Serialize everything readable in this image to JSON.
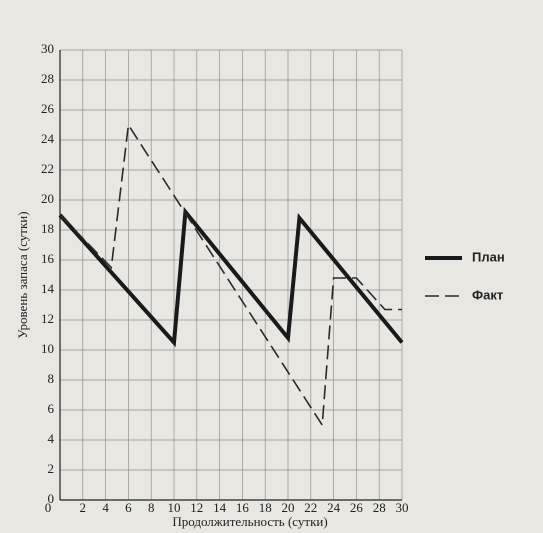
{
  "chart_data": {
    "type": "line",
    "xlabel": "Продолжительность (сутки)",
    "ylabel": "Уровень запаса (сутки)",
    "xlim": [
      0,
      30
    ],
    "ylim": [
      0,
      30
    ],
    "xticks": [
      0,
      2,
      4,
      6,
      8,
      10,
      12,
      14,
      16,
      18,
      20,
      22,
      24,
      26,
      28,
      30
    ],
    "yticks": [
      0,
      2,
      4,
      6,
      8,
      10,
      12,
      14,
      16,
      18,
      20,
      22,
      24,
      26,
      28,
      30
    ],
    "grid": true,
    "legend": "right",
    "series": [
      {
        "name": "План",
        "color": "#1a1a1a",
        "width": 4,
        "dashed": false,
        "x": [
          0,
          10,
          11,
          20,
          21,
          30
        ],
        "values": [
          19,
          10.5,
          19.2,
          10.8,
          18.8,
          10.5
        ]
      },
      {
        "name": "Факт",
        "color": "#2a2a2a",
        "width": 1.6,
        "dashed": true,
        "x": [
          0,
          4.5,
          6,
          23,
          24,
          26,
          28.5,
          30
        ],
        "values": [
          19,
          15.5,
          25,
          5,
          14.8,
          14.8,
          12.7,
          12.7
        ]
      }
    ]
  }
}
